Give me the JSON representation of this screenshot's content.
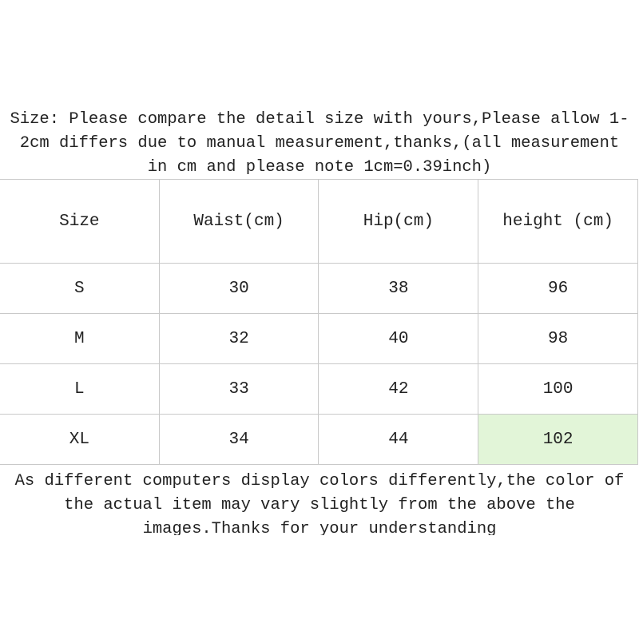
{
  "intro": {
    "lines": [
      "Size: Please compare the detail size with yours,Please allow 1-",
      "2cm differs due to manual measurement,thanks,(all measurement",
      "in cm and please note 1cm=0.39inch)"
    ]
  },
  "table": {
    "header": [
      "Size",
      "Waist(cm)",
      "Hip(cm)",
      "height (cm)"
    ],
    "rows": [
      [
        "S",
        30,
        38,
        96
      ],
      [
        "M",
        32,
        40,
        98
      ],
      [
        "L",
        33,
        42,
        100
      ],
      [
        "XL",
        34,
        44,
        102
      ]
    ]
  },
  "footer": {
    "lines": [
      "As different computers display colors differently,the color of",
      "the actual item may vary slightly from the above the",
      "images.Thanks for your understanding"
    ]
  }
}
